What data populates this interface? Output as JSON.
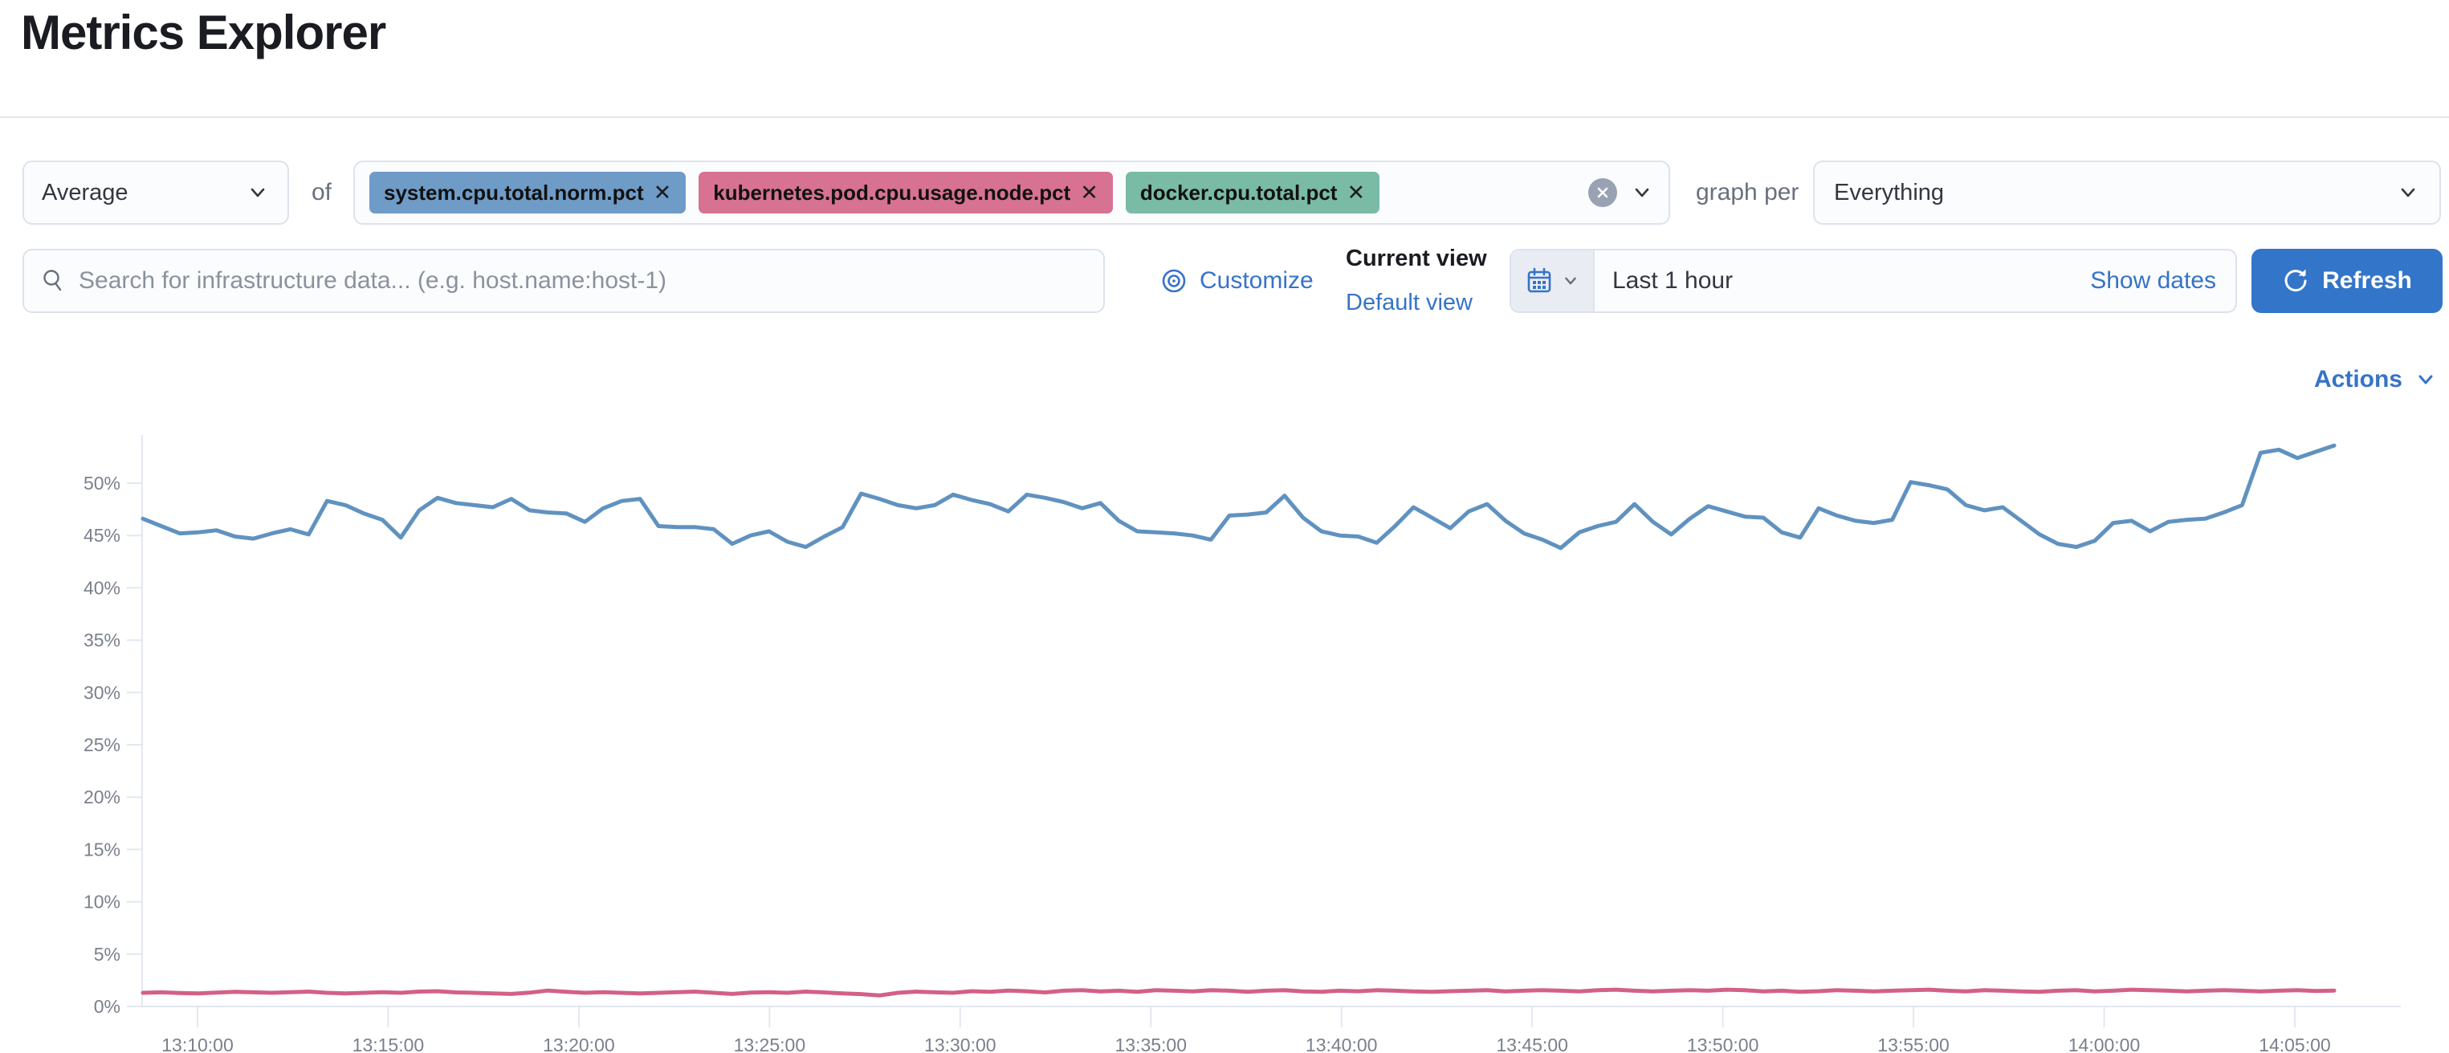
{
  "page": {
    "title": "Metrics Explorer"
  },
  "toolbar": {
    "aggregation": {
      "value": "Average"
    },
    "of_label": "of",
    "metrics": {
      "pills": [
        {
          "label": "system.cpu.total.norm.pct",
          "color": "#6f9bc7"
        },
        {
          "label": "kubernetes.pod.cpu.usage.node.pct",
          "color": "#d77292"
        },
        {
          "label": "docker.cpu.total.pct",
          "color": "#79bba4"
        }
      ],
      "remove_icon_label": "✕"
    },
    "graph_per_label": "graph per",
    "group_by": {
      "value": "Everything"
    }
  },
  "filter_row": {
    "search": {
      "placeholder": "Search for infrastructure data... (e.g. host.name:host-1)"
    },
    "customize_label": "Customize",
    "view_picker": {
      "current_label": "Current view",
      "value": "Default view"
    },
    "time_picker": {
      "value": "Last 1 hour",
      "show_dates_label": "Show dates"
    },
    "refresh_label": "Refresh"
  },
  "actions_label": "Actions",
  "colors": {
    "link_blue": "#3673c9",
    "refresh_button": "#3375c8",
    "series_blue": "#6092C0",
    "series_pink": "#D36086",
    "axis_line": "#e3e7ef",
    "axis_text": "#7a808c"
  },
  "chart_data": {
    "type": "line",
    "title": "",
    "xlabel": "",
    "ylabel": "",
    "ylim": [
      0,
      55
    ],
    "grid": false,
    "legend": "none",
    "y_tick_labels": [
      "0%",
      "5%",
      "10%",
      "15%",
      "20%",
      "25%",
      "30%",
      "35%",
      "40%",
      "45%",
      "50%"
    ],
    "x_tick_labels": [
      "13:10:00",
      "13:15:00",
      "13:20:00",
      "13:25:00",
      "13:30:00",
      "13:35:00",
      "13:40:00",
      "13:45:00",
      "13:50:00",
      "13:55:00",
      "14:00:00",
      "14:05:00"
    ],
    "x_start": "13:08:30",
    "x_interval_seconds": 30,
    "series": [
      {
        "name": "system.cpu.total.norm.pct",
        "color": "#6092C0",
        "unit": "%",
        "values": [
          46.6,
          45.9,
          45.2,
          45.3,
          45.5,
          44.9,
          44.7,
          45.2,
          45.6,
          45.1,
          48.3,
          47.9,
          47.1,
          46.5,
          44.8,
          47.4,
          48.6,
          48.1,
          47.9,
          47.7,
          48.5,
          47.4,
          47.2,
          47.1,
          46.3,
          47.6,
          48.3,
          48.5,
          45.9,
          45.8,
          45.8,
          45.6,
          44.2,
          45.0,
          45.4,
          44.4,
          43.9,
          44.9,
          45.8,
          49.0,
          48.5,
          47.9,
          47.6,
          47.9,
          48.9,
          48.4,
          48.0,
          47.3,
          48.9,
          48.6,
          48.2,
          47.6,
          48.1,
          46.4,
          45.4,
          45.3,
          45.2,
          45.0,
          44.6,
          46.9,
          47.0,
          47.2,
          48.8,
          46.7,
          45.4,
          45.0,
          44.9,
          44.3,
          45.9,
          47.7,
          46.7,
          45.7,
          47.3,
          48.0,
          46.4,
          45.2,
          44.6,
          43.8,
          45.3,
          45.9,
          46.3,
          48.0,
          46.3,
          45.1,
          46.6,
          47.8,
          47.3,
          46.8,
          46.7,
          45.3,
          44.8,
          47.6,
          46.9,
          46.4,
          46.2,
          46.5,
          50.1,
          49.8,
          49.4,
          47.9,
          47.4,
          47.7,
          46.4,
          45.1,
          44.2,
          43.9,
          44.5,
          46.2,
          46.4,
          45.4,
          46.3,
          46.5,
          46.6,
          47.2,
          47.9,
          52.9,
          53.2,
          52.4,
          53.0,
          53.6
        ]
      },
      {
        "name": "kubernetes.pod.cpu.usage.node.pct",
        "color": "#D36086",
        "unit": "%",
        "values": [
          1.3,
          1.35,
          1.28,
          1.25,
          1.32,
          1.4,
          1.35,
          1.3,
          1.36,
          1.42,
          1.3,
          1.25,
          1.3,
          1.36,
          1.3,
          1.42,
          1.46,
          1.34,
          1.3,
          1.25,
          1.2,
          1.32,
          1.52,
          1.4,
          1.3,
          1.36,
          1.3,
          1.24,
          1.3,
          1.36,
          1.42,
          1.3,
          1.2,
          1.32,
          1.36,
          1.3,
          1.42,
          1.34,
          1.25,
          1.18,
          1.05,
          1.3,
          1.42,
          1.35,
          1.3,
          1.46,
          1.4,
          1.52,
          1.45,
          1.34,
          1.5,
          1.55,
          1.44,
          1.5,
          1.4,
          1.56,
          1.5,
          1.44,
          1.56,
          1.5,
          1.4,
          1.5,
          1.56,
          1.44,
          1.4,
          1.5,
          1.45,
          1.56,
          1.5,
          1.44,
          1.4,
          1.46,
          1.5,
          1.56,
          1.44,
          1.5,
          1.56,
          1.5,
          1.44,
          1.56,
          1.6,
          1.5,
          1.44,
          1.5,
          1.56,
          1.5,
          1.6,
          1.55,
          1.44,
          1.5,
          1.4,
          1.46,
          1.56,
          1.5,
          1.44,
          1.5,
          1.56,
          1.6,
          1.5,
          1.44,
          1.56,
          1.5,
          1.44,
          1.4,
          1.5,
          1.56,
          1.44,
          1.5,
          1.6,
          1.55,
          1.5,
          1.44,
          1.5,
          1.56,
          1.5,
          1.44,
          1.5,
          1.55,
          1.48,
          1.52
        ]
      }
    ]
  }
}
